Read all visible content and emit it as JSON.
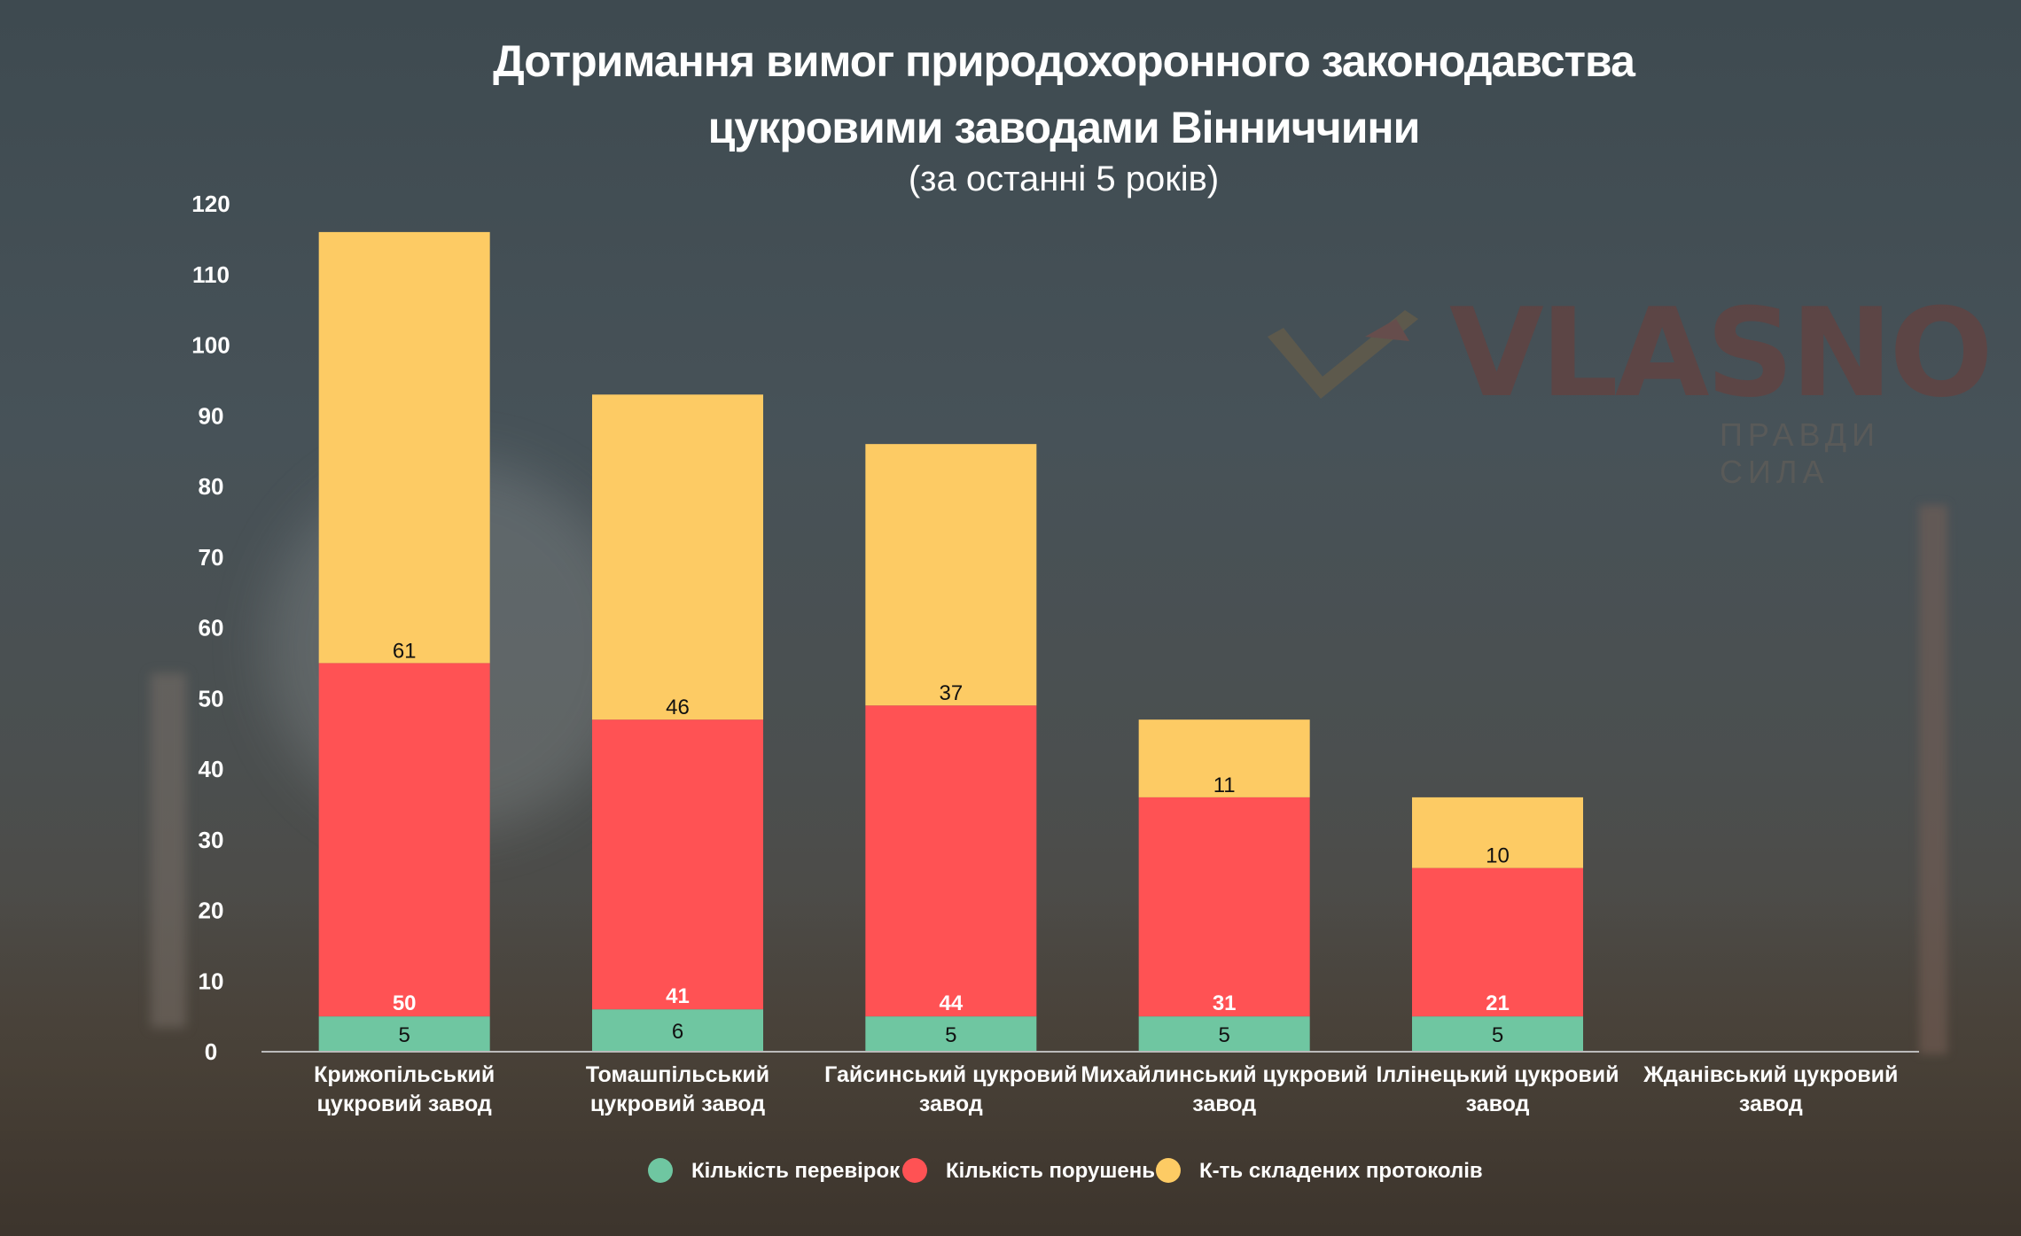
{
  "chart_data": {
    "type": "bar",
    "stacked": true,
    "title_line1": "Дотримання вимог природохоронного законодавства",
    "title_line2": "цукровими заводами Вінниччини",
    "subtitle": "(за останні 5 років)",
    "categories": [
      [
        "Крижопільський",
        "цукровий завод"
      ],
      [
        "Томашпільський",
        "цукровий завод"
      ],
      [
        "Гайсинський цукровий",
        "завод"
      ],
      [
        "Михайлинський цукровий",
        "завод"
      ],
      [
        "Іллінецький цукровий",
        "завод"
      ],
      [
        "Жданівський цукровий",
        "завод"
      ]
    ],
    "series": [
      {
        "name": "Кількість перевірок",
        "color": "#6fc6a1",
        "values": [
          5,
          6,
          5,
          5,
          5,
          null
        ]
      },
      {
        "name": "Кількість порушень",
        "color": "#ff5254",
        "values": [
          50,
          41,
          44,
          31,
          21,
          null
        ]
      },
      {
        "name": "К-ть складених протоколів",
        "color": "#fdcb64",
        "values": [
          61,
          46,
          37,
          11,
          10,
          null
        ]
      }
    ],
    "y_ticks": [
      "0",
      "10",
      "20",
      "30",
      "40",
      "50",
      "60",
      "70",
      "80",
      "90",
      "100",
      "110",
      "120"
    ],
    "ylim": [
      0,
      120
    ],
    "grid": false,
    "legend_position": "bottom-center"
  },
  "watermark": {
    "brand": "VLASNO",
    "tagline": "ПРАВДИ СИЛА",
    "logo_icon": "vlasno-logo-icon"
  },
  "colors": {
    "text": "#ffffff",
    "label_dark": "#111111",
    "axis": "#bbbbbb"
  }
}
